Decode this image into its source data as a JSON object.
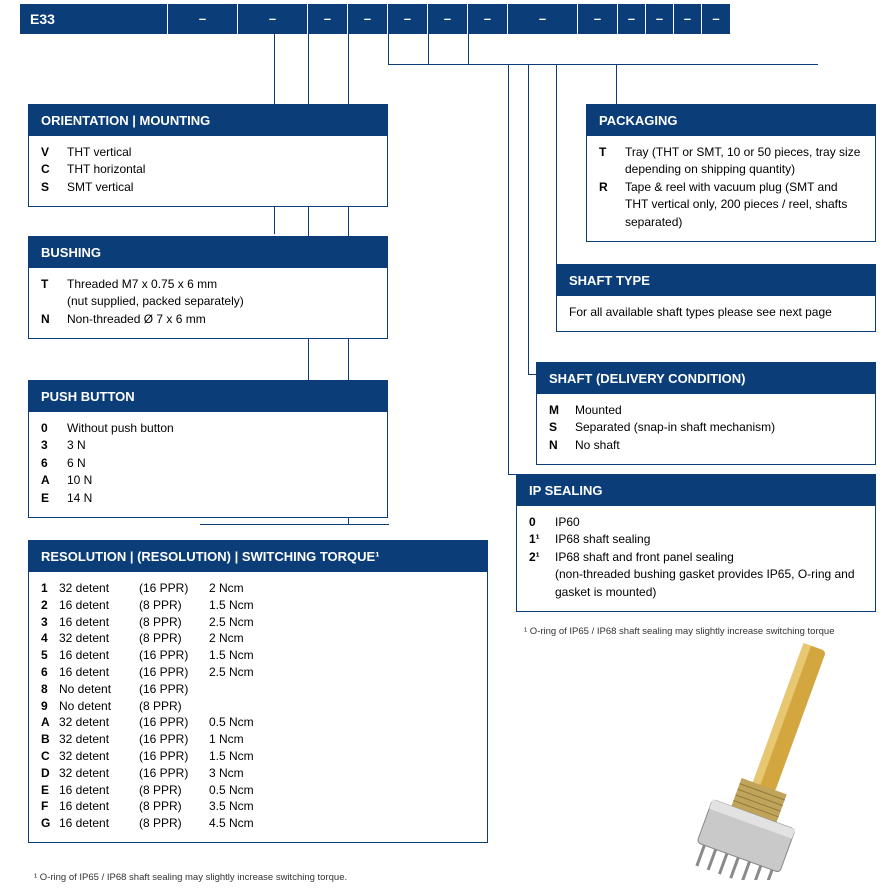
{
  "colors": {
    "brand": "#0b3d78",
    "text": "#000000",
    "bg": "#ffffff"
  },
  "strip": {
    "product": "E33",
    "dashes": [
      "–",
      "–",
      "–",
      "–",
      "–",
      "–",
      "–",
      "–",
      "–",
      "–",
      "–",
      "–",
      "–"
    ]
  },
  "boxes": {
    "orientation": {
      "title": "ORIENTATION | MOUNTING",
      "rows": [
        {
          "code": "V",
          "text": "THT vertical"
        },
        {
          "code": "C",
          "text": "THT horizontal"
        },
        {
          "code": "S",
          "text": "SMT vertical"
        }
      ]
    },
    "bushing": {
      "title": "BUSHING",
      "rows": [
        {
          "code": "T",
          "text": "Threaded M7 x 0.75 x 6 mm"
        },
        {
          "code": "",
          "text": "(nut supplied, packed separately)"
        },
        {
          "code": "N",
          "text": "Non-threaded Ø 7 x 6 mm"
        }
      ]
    },
    "push": {
      "title": "PUSH BUTTON",
      "rows": [
        {
          "code": "0",
          "text": "Without push button"
        },
        {
          "code": "3",
          "text": "3 N"
        },
        {
          "code": "6",
          "text": "6 N"
        },
        {
          "code": "A",
          "text": "10 N"
        },
        {
          "code": "E",
          "text": "14 N"
        }
      ]
    },
    "packaging": {
      "title": "PACKAGING",
      "rows": [
        {
          "code": "T",
          "text": "Tray (THT or SMT, 10 or 50 pieces, tray size depending on shipping quantity)"
        },
        {
          "code": "R",
          "text": "Tape & reel with vacuum plug (SMT and THT vertical only, 200 pieces / reel, shafts separated)"
        }
      ]
    },
    "shafttype": {
      "title": "SHAFT TYPE",
      "text": "For all available shaft types please see next page"
    },
    "shaftdeliv": {
      "title": "SHAFT (DELIVERY CONDITION)",
      "rows": [
        {
          "code": "M",
          "text": "Mounted"
        },
        {
          "code": "S",
          "text": "Separated (snap-in shaft mechanism)"
        },
        {
          "code": "N",
          "text": "No shaft"
        }
      ]
    },
    "ip": {
      "title": "IP SEALING",
      "rows": [
        {
          "code": "0",
          "text": "IP60"
        },
        {
          "code": "1¹",
          "text": "IP68 shaft sealing"
        },
        {
          "code": "2¹",
          "text": "IP68 shaft and front panel sealing"
        },
        {
          "code": "",
          "text": "(non-threaded bushing gasket provides IP65, O-ring and gasket is mounted)"
        }
      ],
      "footnote": "¹ O-ring of IP65 / IP68 shaft sealing may slightly increase switching torque"
    },
    "resolution": {
      "title": "RESOLUTION | (RESOLUTION) | SWITCHING TORQUE¹",
      "rows": [
        {
          "c0": "1",
          "c1": "32 detent",
          "c2": "(16 PPR)",
          "c3": "2 Ncm"
        },
        {
          "c0": "2",
          "c1": "16 detent",
          "c2": "(8 PPR)",
          "c3": "1.5 Ncm"
        },
        {
          "c0": "3",
          "c1": "16 detent",
          "c2": "(8 PPR)",
          "c3": "2.5 Ncm"
        },
        {
          "c0": "4",
          "c1": "32 detent",
          "c2": "(8 PPR)",
          "c3": "2 Ncm"
        },
        {
          "c0": "5",
          "c1": "16 detent",
          "c2": "(16 PPR)",
          "c3": "1.5 Ncm"
        },
        {
          "c0": "6",
          "c1": "16 detent",
          "c2": "(16 PPR)",
          "c3": "2.5 Ncm"
        },
        {
          "c0": "8",
          "c1": "No detent",
          "c2": "(16 PPR)",
          "c3": ""
        },
        {
          "c0": "9",
          "c1": "No detent",
          "c2": "(8 PPR)",
          "c3": ""
        },
        {
          "c0": "A",
          "c1": "32 detent",
          "c2": "(16 PPR)",
          "c3": "0.5 Ncm"
        },
        {
          "c0": "B",
          "c1": "32 detent",
          "c2": "(16 PPR)",
          "c3": "1 Ncm"
        },
        {
          "c0": "C",
          "c1": "32 detent",
          "c2": "(16 PPR)",
          "c3": "1.5 Ncm"
        },
        {
          "c0": "D",
          "c1": "32 detent",
          "c2": "(16 PPR)",
          "c3": "3 Ncm"
        },
        {
          "c0": "E",
          "c1": "16 detent",
          "c2": "(8 PPR)",
          "c3": "0.5 Ncm"
        },
        {
          "c0": "F",
          "c1": "16 detent",
          "c2": "(8 PPR)",
          "c3": "3.5 Ncm"
        },
        {
          "c0": "G",
          "c1": "16 detent",
          "c2": "(8 PPR)",
          "c3": "4.5 Ncm"
        }
      ],
      "footnote": "¹ O-ring of IP65 / IP68 shaft sealing may slightly increase switching torque."
    }
  },
  "layout": {
    "strip_segments": [
      {
        "cls": "e33"
      },
      {
        "cls": "wide"
      },
      {
        "cls": "wide"
      },
      {
        "cls": "mid"
      },
      {
        "cls": "mid"
      },
      {
        "cls": "mid"
      },
      {
        "cls": "mid"
      },
      {
        "cls": "mid"
      },
      {
        "cls": "wide"
      },
      {
        "cls": "mid"
      },
      {
        "cls": "nrw"
      },
      {
        "cls": "nrw"
      },
      {
        "cls": "nrw"
      },
      {
        "cls": "nrw"
      }
    ]
  }
}
